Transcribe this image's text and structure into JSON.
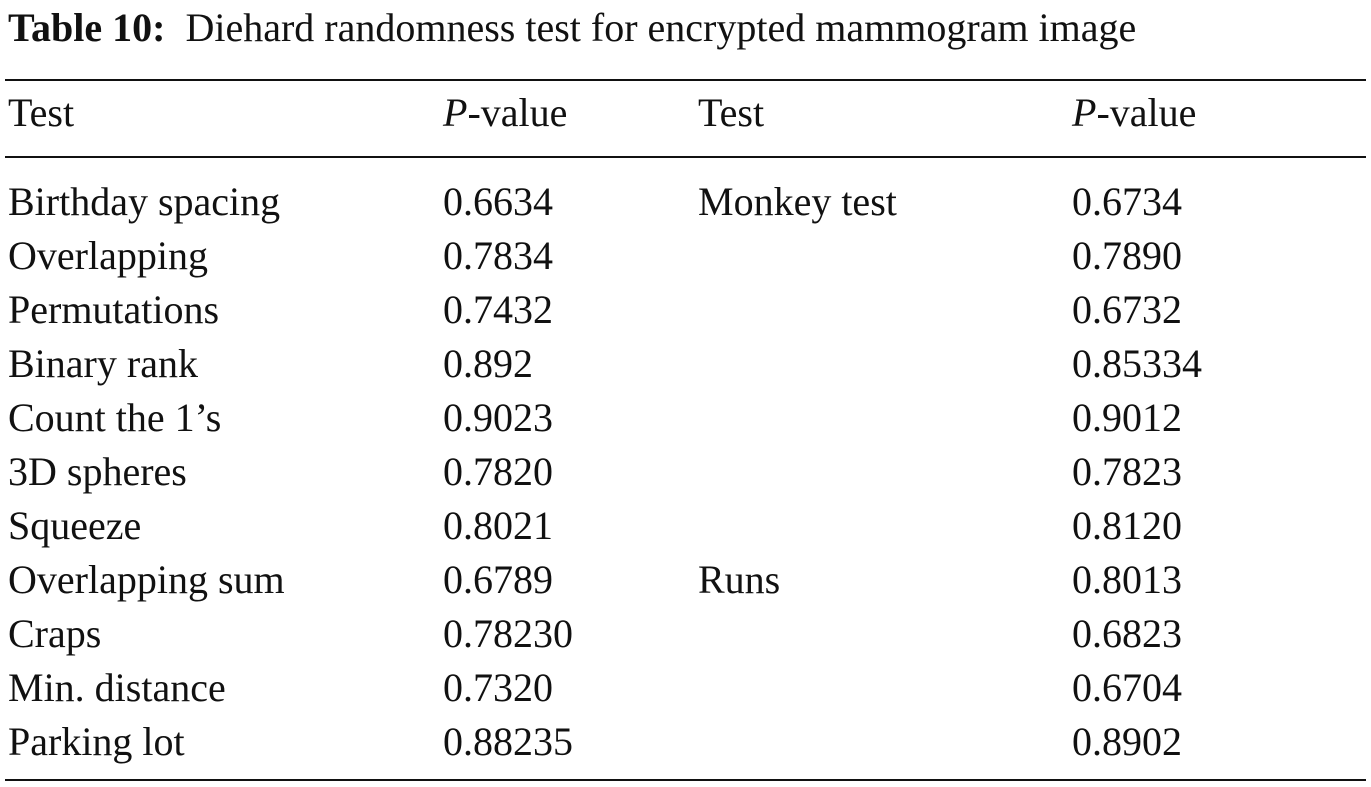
{
  "caption": {
    "label": "Table 10:",
    "text": "Diehard randomness test for encrypted mammogram image"
  },
  "header": {
    "test": "Test",
    "p_italic": "P",
    "p_rest": "-value"
  },
  "rows": [
    {
      "test1": "Birthday spacing",
      "p1": "0.6634",
      "test2": "Monkey test",
      "p2": "0.6734"
    },
    {
      "test1": "Overlapping",
      "p1": "0.7834",
      "test2": "",
      "p2": "0.7890"
    },
    {
      "test1": "Permutations",
      "p1": "0.7432",
      "test2": "",
      "p2": "0.6732"
    },
    {
      "test1": "Binary rank",
      "p1": "0.892",
      "test2": "",
      "p2": "0.85334"
    },
    {
      "test1": "Count the 1’s",
      "p1": "0.9023",
      "test2": "",
      "p2": "0.9012"
    },
    {
      "test1": "3D spheres",
      "p1": "0.7820",
      "test2": "",
      "p2": "0.7823"
    },
    {
      "test1": "Squeeze",
      "p1": "0.8021",
      "test2": "",
      "p2": "0.8120"
    },
    {
      "test1": "Overlapping sum",
      "p1": "0.6789",
      "test2": "Runs",
      "p2": "0.8013"
    },
    {
      "test1": "Craps",
      "p1": "0.78230",
      "test2": "",
      "p2": "0.6823"
    },
    {
      "test1": "Min. distance",
      "p1": "0.7320",
      "test2": "",
      "p2": "0.6704"
    },
    {
      "test1": "Parking lot",
      "p1": "0.88235",
      "test2": "",
      "p2": "0.8902"
    }
  ]
}
